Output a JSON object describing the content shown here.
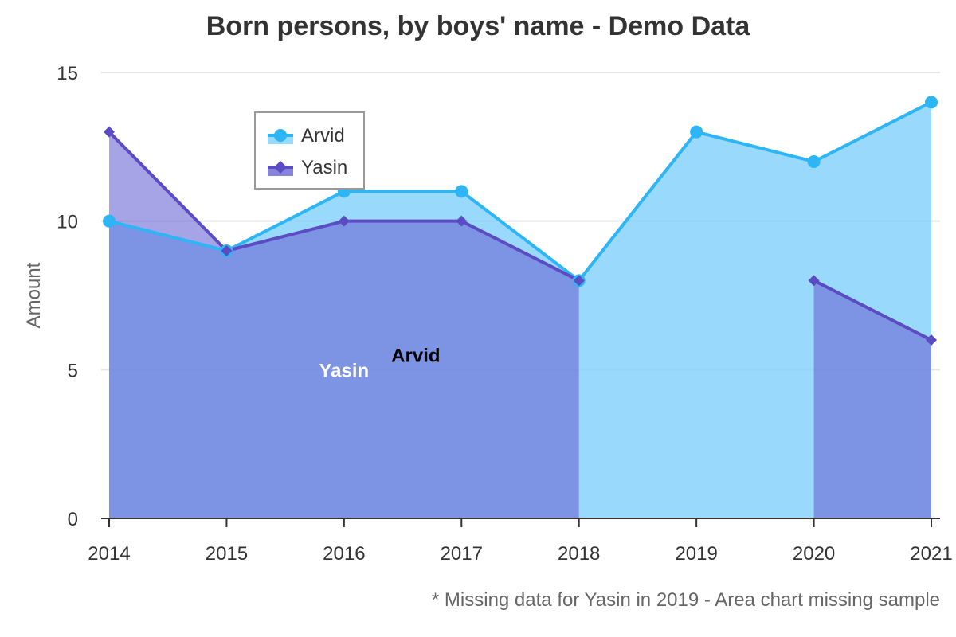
{
  "chart_data": {
    "type": "area",
    "title": "Born persons, by boys' name - Demo Data",
    "caption": "* Missing data for Yasin in 2019 - Area chart missing sample",
    "xlabel": "",
    "ylabel": "Amount",
    "categories": [
      "2014",
      "2015",
      "2016",
      "2017",
      "2018",
      "2019",
      "2020",
      "2021"
    ],
    "ylim": [
      0,
      15
    ],
    "yticks": [
      "0",
      "5",
      "10",
      "15"
    ],
    "grid": true,
    "legend": "top-left",
    "series": [
      {
        "name": "Arvid",
        "values": [
          10,
          9,
          11,
          11,
          8,
          13,
          12,
          14
        ],
        "color": "#2db5f5",
        "fill": "#7fd0fb",
        "marker": "circle"
      },
      {
        "name": "Yasin",
        "values": [
          13,
          9,
          10,
          10,
          8,
          null,
          8,
          6
        ],
        "color": "#5b4cc4",
        "fill": "#6b66d6",
        "marker": "diamond"
      }
    ],
    "annotations": [
      {
        "text": "Yasin",
        "x": "2016",
        "y": 5
      },
      {
        "text": "Arvid",
        "x": "2016",
        "y": 5.5
      }
    ]
  }
}
